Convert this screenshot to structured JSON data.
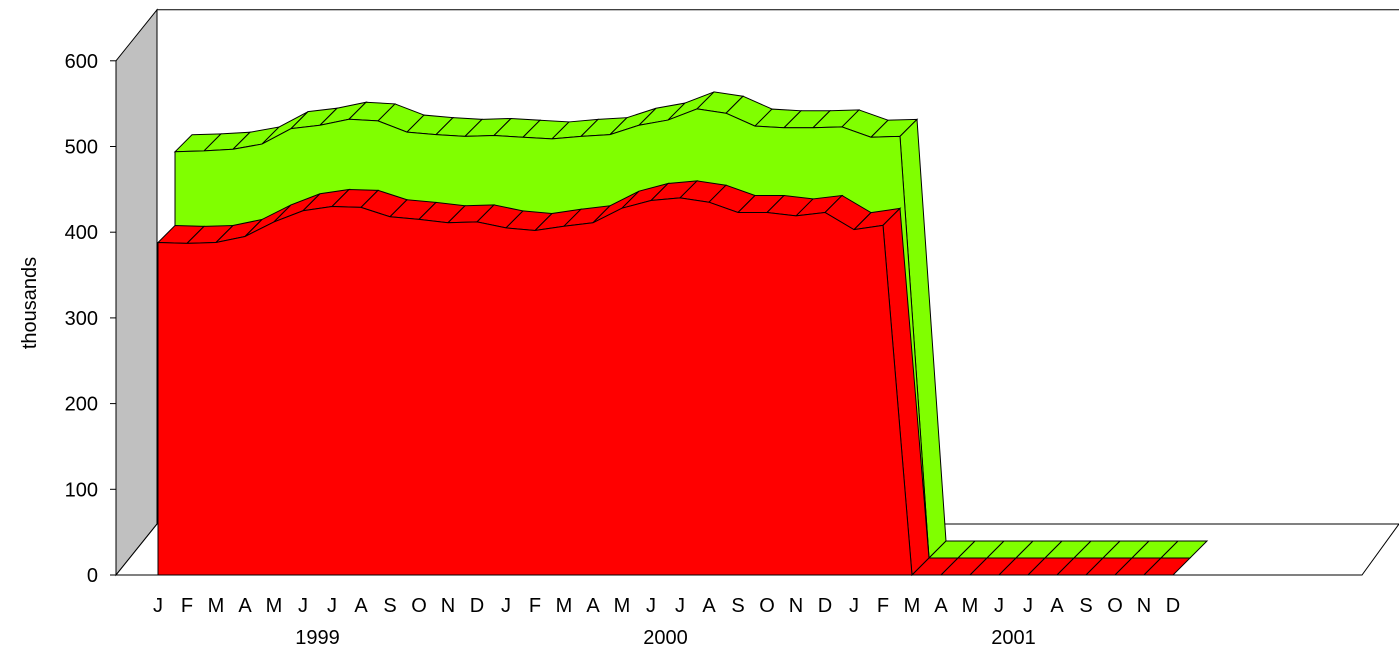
{
  "chart_data": {
    "type": "area",
    "title": "",
    "ylabel": "thousands",
    "xlabel": "",
    "ylim": [
      0,
      600
    ],
    "yticks": [
      0,
      100,
      200,
      300,
      400,
      500,
      600
    ],
    "categories": [
      "J",
      "F",
      "M",
      "A",
      "M",
      "J",
      "J",
      "A",
      "S",
      "O",
      "N",
      "D",
      "J",
      "F",
      "M",
      "A",
      "M",
      "J",
      "J",
      "A",
      "S",
      "O",
      "N",
      "D",
      "J",
      "F",
      "M",
      "A",
      "M",
      "J",
      "J",
      "A",
      "S",
      "O",
      "N",
      "D"
    ],
    "groups": [
      {
        "label": "1999",
        "start": 0,
        "end": 11
      },
      {
        "label": "2000",
        "start": 12,
        "end": 23
      },
      {
        "label": "2001",
        "start": 24,
        "end": 35
      }
    ],
    "series": [
      {
        "color": "#ff0000",
        "values": [
          388,
          387,
          388,
          395,
          412,
          425,
          430,
          429,
          418,
          415,
          411,
          412,
          405,
          402,
          407,
          411,
          428,
          437,
          440,
          435,
          423,
          423,
          419,
          423,
          403,
          408,
          0,
          0,
          0,
          0,
          0,
          0,
          0,
          0,
          0,
          0
        ]
      },
      {
        "color": "#80ff00",
        "values": [
          474,
          475,
          477,
          483,
          501,
          505,
          512,
          510,
          497,
          494,
          492,
          493,
          491,
          489,
          492,
          494,
          505,
          511,
          524,
          519,
          504,
          502,
          502,
          503,
          491,
          492,
          0,
          0,
          0,
          0,
          0,
          0,
          0,
          0,
          0,
          0
        ]
      }
    ],
    "grid": false,
    "legend": "none"
  }
}
